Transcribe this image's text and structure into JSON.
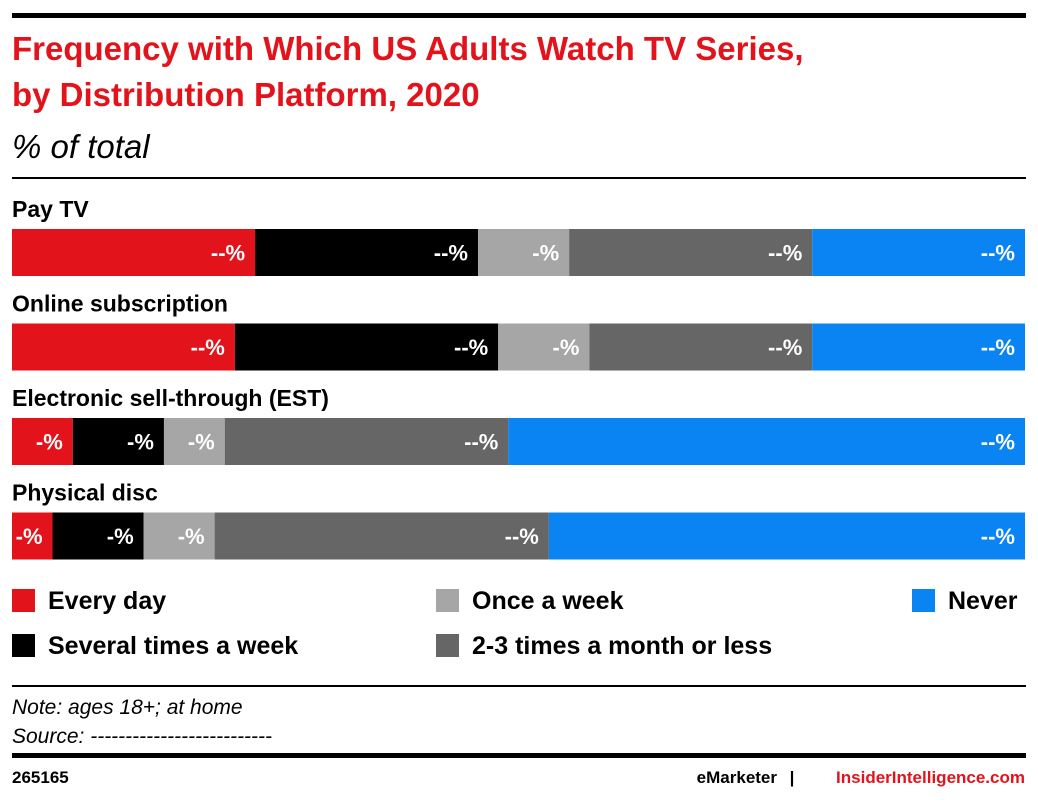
{
  "chart_data": {
    "type": "stacked_bar_horizontal",
    "title": [
      "Frequency with Which US Adults Watch TV Series,",
      "by Distribution Platform, 2020"
    ],
    "subtitle": "% of total",
    "categories": [
      "Pay TV",
      "Online subscription",
      "Electronic sell-through (EST)",
      "Physical disc"
    ],
    "xlim": [
      0,
      100
    ],
    "series": [
      {
        "name": "Every day",
        "color": "#e3131c",
        "values": [
          24,
          22,
          6,
          4
        ],
        "value_labels": [
          "--%",
          "--%",
          "-%",
          "-%"
        ]
      },
      {
        "name": "Several times a week",
        "color": "#000000",
        "values": [
          22,
          26,
          9,
          9
        ],
        "value_labels": [
          "--%",
          "--%",
          "-%",
          "-%"
        ]
      },
      {
        "name": "Once a week",
        "color": "#a6a6a6",
        "values": [
          9,
          9,
          6,
          7
        ],
        "value_labels": [
          "-%",
          "-%",
          "-%",
          "-%"
        ]
      },
      {
        "name": "2-3 times a month or less",
        "color": "#666666",
        "values": [
          24,
          22,
          28,
          33
        ],
        "value_labels": [
          "--%",
          "--%",
          "--%",
          "--%"
        ]
      },
      {
        "name": "Never",
        "color": "#0b84f3",
        "values": [
          21,
          21,
          51,
          47
        ],
        "value_labels": [
          "--%",
          "--%",
          "--%",
          "--%"
        ]
      }
    ],
    "note": "Note: ages 18+; at home",
    "source": "Source: --------------------------",
    "chart_id": "265165",
    "footer_brand": "eMarketer",
    "footer_separator": "|",
    "footer_site": "InsiderIntelligence.com"
  }
}
